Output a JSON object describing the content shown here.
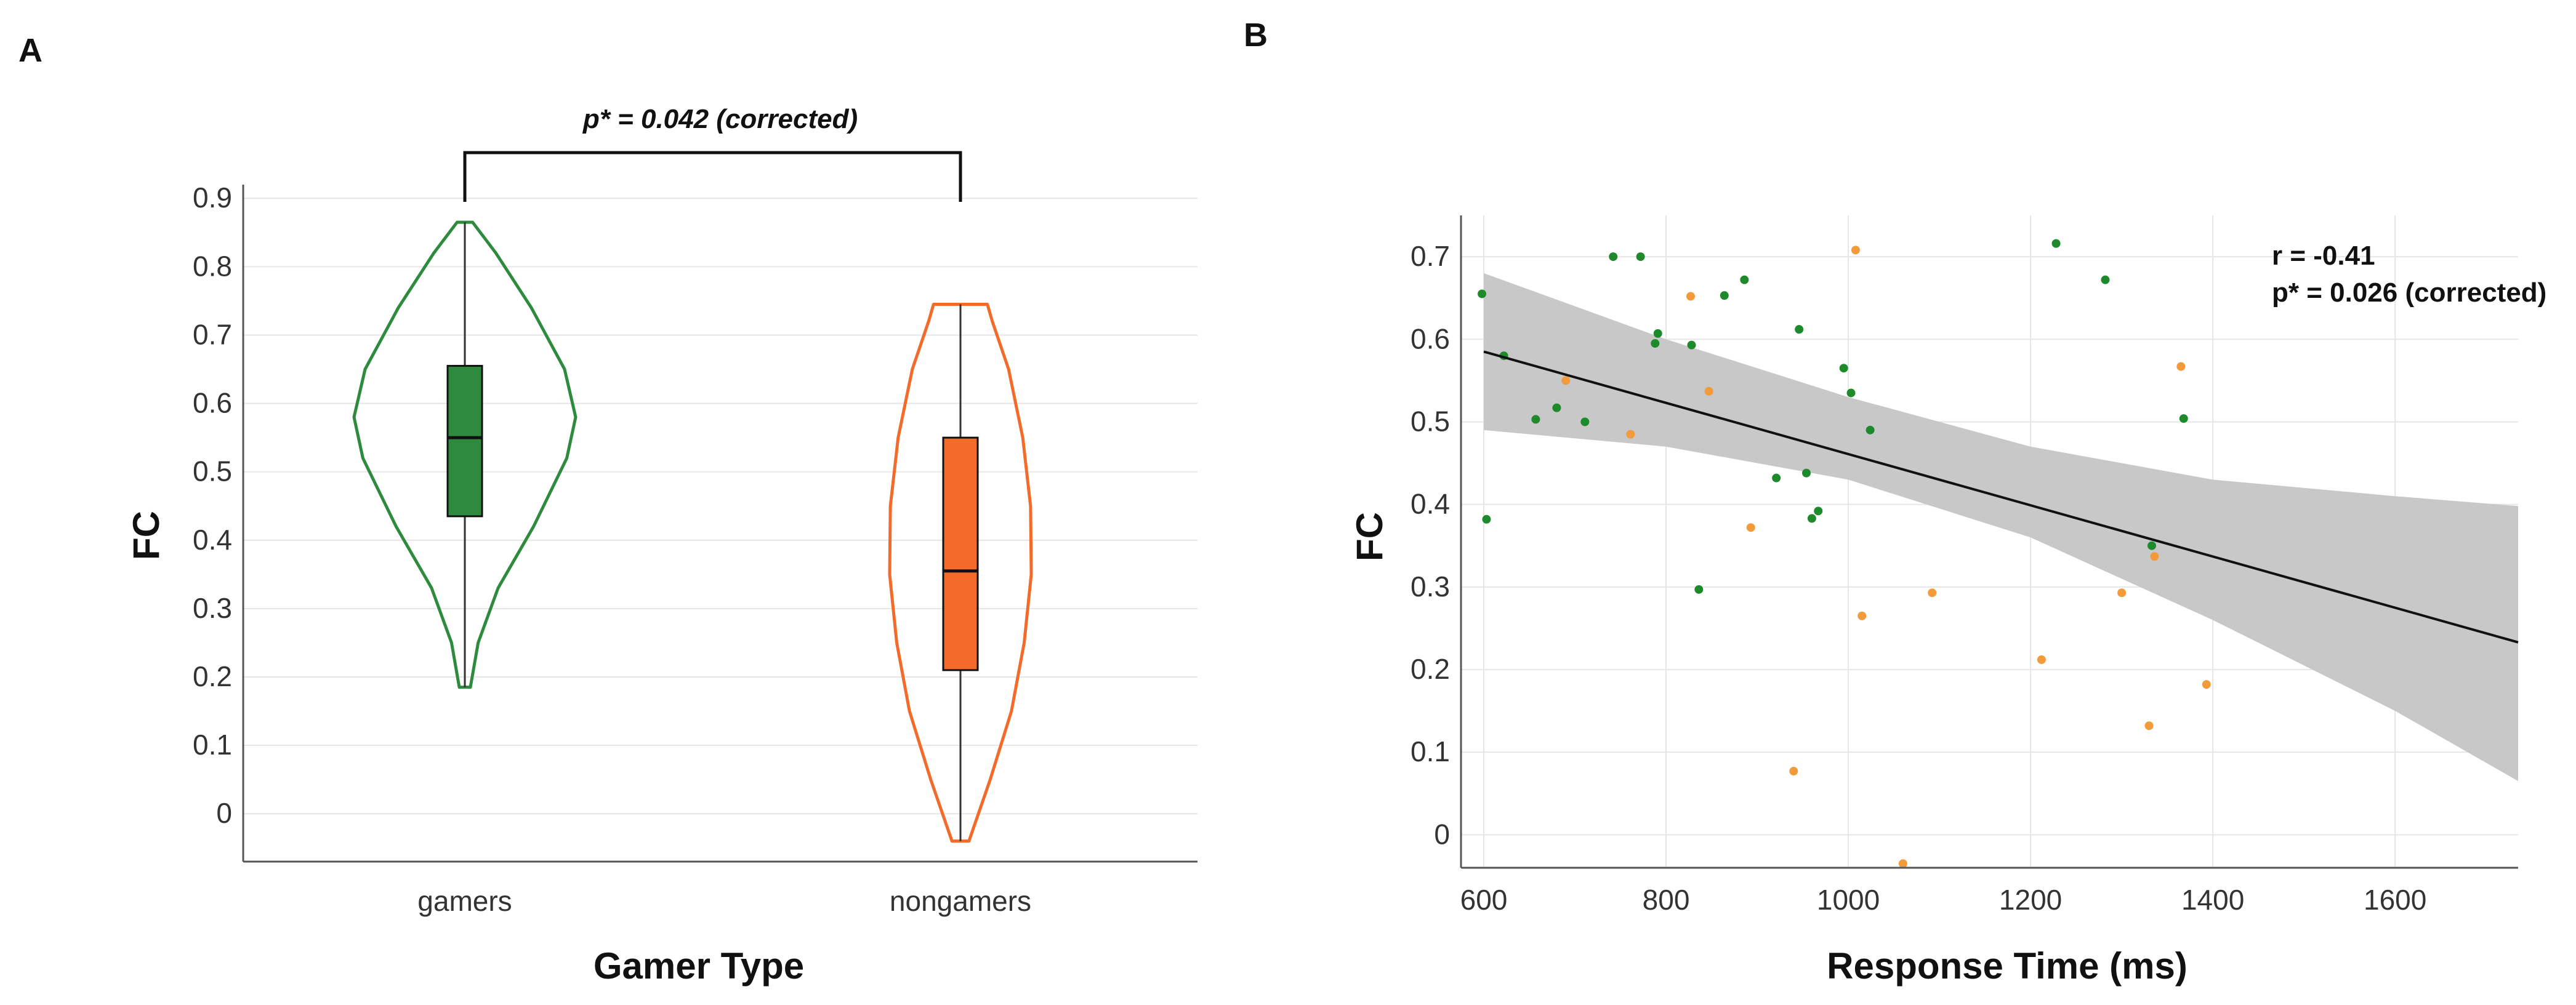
{
  "panels": {
    "a": "A",
    "b": "B"
  },
  "chart_data": [
    {
      "type": "violin",
      "panel": "A",
      "xlabel": "Gamer Type",
      "ylabel": "FC",
      "ylim": [
        -0.07,
        0.92
      ],
      "yticks": [
        0,
        0.1,
        0.2,
        0.3,
        0.4,
        0.5,
        0.6,
        0.7,
        0.8,
        0.9
      ],
      "ytick_labels": [
        "0",
        "0.1",
        "0.2",
        "0.3",
        "0.4",
        "0.5",
        "0.6",
        "0.7",
        "0.8",
        "0.9"
      ],
      "grid": true,
      "significance": "p* = 0.042 (corrected)",
      "groups": [
        {
          "name": "gamers",
          "color": "#2e8b3e",
          "min": 0.185,
          "q1": 0.435,
          "median": 0.55,
          "q3": 0.655,
          "max": 0.865,
          "shape": [
            [
              0.185,
              0.05
            ],
            [
              0.25,
              0.12
            ],
            [
              0.33,
              0.3
            ],
            [
              0.42,
              0.62
            ],
            [
              0.52,
              0.92
            ],
            [
              0.58,
              1.0
            ],
            [
              0.65,
              0.9
            ],
            [
              0.74,
              0.6
            ],
            [
              0.82,
              0.28
            ],
            [
              0.865,
              0.07
            ]
          ]
        },
        {
          "name": "nongamers",
          "color": "#f26b2a",
          "min": -0.04,
          "q1": 0.21,
          "median": 0.355,
          "q3": 0.55,
          "max": 0.745,
          "shape": [
            [
              -0.04,
              0.12
            ],
            [
              0.05,
              0.42
            ],
            [
              0.15,
              0.72
            ],
            [
              0.25,
              0.9
            ],
            [
              0.35,
              1.0
            ],
            [
              0.45,
              0.99
            ],
            [
              0.55,
              0.88
            ],
            [
              0.65,
              0.68
            ],
            [
              0.72,
              0.45
            ],
            [
              0.745,
              0.38
            ]
          ]
        }
      ]
    },
    {
      "type": "scatter",
      "panel": "B",
      "xlabel": "Response Time (ms)",
      "ylabel": "FC",
      "xlim": [
        575,
        1735
      ],
      "ylim": [
        -0.04,
        0.75
      ],
      "xticks": [
        600,
        800,
        1000,
        1200,
        1400,
        1600
      ],
      "xtick_labels": [
        "600",
        "800",
        "1000",
        "1200",
        "1400",
        "1600"
      ],
      "yticks": [
        0,
        0.1,
        0.2,
        0.3,
        0.4,
        0.5,
        0.6,
        0.7
      ],
      "ytick_labels": [
        "0",
        "0.1",
        "0.2",
        "0.3",
        "0.4",
        "0.5",
        "0.6",
        "0.7"
      ],
      "grid": true,
      "annotation": {
        "r": "r = -0.41",
        "p": "p* = 0.026 (corrected)"
      },
      "fit": {
        "line": [
          [
            600,
            0.585
          ],
          [
            1735,
            0.233
          ]
        ],
        "ci_upper": [
          [
            600,
            0.68
          ],
          [
            800,
            0.6
          ],
          [
            1000,
            0.53
          ],
          [
            1200,
            0.47
          ],
          [
            1400,
            0.43
          ],
          [
            1600,
            0.41
          ],
          [
            1735,
            0.398
          ]
        ],
        "ci_lower": [
          [
            600,
            0.49
          ],
          [
            800,
            0.47
          ],
          [
            1000,
            0.43
          ],
          [
            1200,
            0.36
          ],
          [
            1400,
            0.26
          ],
          [
            1600,
            0.15
          ],
          [
            1735,
            0.065
          ]
        ]
      },
      "series": [
        {
          "name": "gamers",
          "color": "#1e8a2b",
          "points": [
            [
              598,
              0.655
            ],
            [
              603,
              0.382
            ],
            [
              622,
              0.58
            ],
            [
              657,
              0.503
            ],
            [
              680,
              0.517
            ],
            [
              711,
              0.5
            ],
            [
              742,
              0.7
            ],
            [
              772,
              0.7
            ],
            [
              788,
              0.595
            ],
            [
              791,
              0.607
            ],
            [
              828,
              0.593
            ],
            [
              836,
              0.297
            ],
            [
              864,
              0.653
            ],
            [
              886,
              0.672
            ],
            [
              921,
              0.432
            ],
            [
              946,
              0.612
            ],
            [
              954,
              0.438
            ],
            [
              960,
              0.383
            ],
            [
              967,
              0.392
            ],
            [
              995,
              0.565
            ],
            [
              1003,
              0.535
            ],
            [
              1024,
              0.49
            ],
            [
              1228,
              0.716
            ],
            [
              1282,
              0.672
            ],
            [
              1333,
              0.35
            ],
            [
              1368,
              0.504
            ]
          ]
        },
        {
          "name": "nongamers",
          "color": "#f39a3a",
          "points": [
            [
              690,
              0.55
            ],
            [
              761,
              0.485
            ],
            [
              827,
              0.652
            ],
            [
              847,
              0.537
            ],
            [
              893,
              0.372
            ],
            [
              940,
              0.077
            ],
            [
              1008,
              0.708
            ],
            [
              1015,
              0.265
            ],
            [
              1060,
              -0.035
            ],
            [
              1092,
              0.293
            ],
            [
              1212,
              0.212
            ],
            [
              1300,
              0.293
            ],
            [
              1330,
              0.132
            ],
            [
              1336,
              0.337
            ],
            [
              1365,
              0.567
            ],
            [
              1393,
              0.182
            ]
          ]
        }
      ]
    }
  ]
}
